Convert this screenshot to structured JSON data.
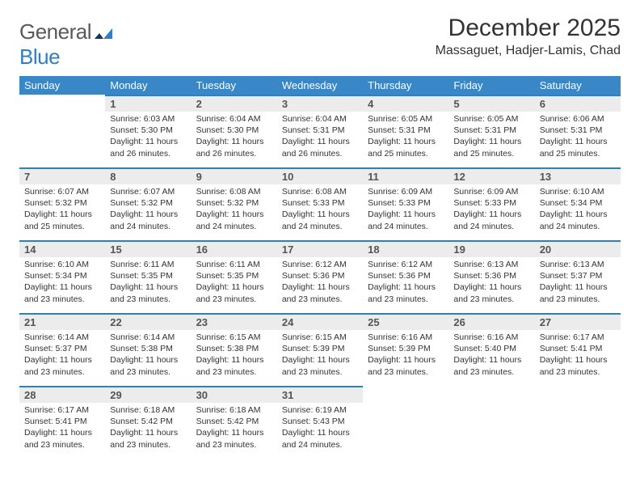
{
  "brand": {
    "part1": "General",
    "part2": "Blue"
  },
  "title": "December 2025",
  "location": "Massaguet, Hadjer-Lamis, Chad",
  "colors": {
    "header_bg": "#3a87c8",
    "header_text": "#ffffff",
    "daynum_bg": "#ececec",
    "daynum_border": "#2f7fc2",
    "brand_gray": "#5a5a5a",
    "brand_blue": "#2f7fc2",
    "body_text": "#333333",
    "page_bg": "#ffffff"
  },
  "weekdays": [
    "Sunday",
    "Monday",
    "Tuesday",
    "Wednesday",
    "Thursday",
    "Friday",
    "Saturday"
  ],
  "weeks": [
    [
      null,
      {
        "n": "1",
        "sr": "Sunrise: 6:03 AM",
        "ss": "Sunset: 5:30 PM",
        "d1": "Daylight: 11 hours",
        "d2": "and 26 minutes."
      },
      {
        "n": "2",
        "sr": "Sunrise: 6:04 AM",
        "ss": "Sunset: 5:30 PM",
        "d1": "Daylight: 11 hours",
        "d2": "and 26 minutes."
      },
      {
        "n": "3",
        "sr": "Sunrise: 6:04 AM",
        "ss": "Sunset: 5:31 PM",
        "d1": "Daylight: 11 hours",
        "d2": "and 26 minutes."
      },
      {
        "n": "4",
        "sr": "Sunrise: 6:05 AM",
        "ss": "Sunset: 5:31 PM",
        "d1": "Daylight: 11 hours",
        "d2": "and 25 minutes."
      },
      {
        "n": "5",
        "sr": "Sunrise: 6:05 AM",
        "ss": "Sunset: 5:31 PM",
        "d1": "Daylight: 11 hours",
        "d2": "and 25 minutes."
      },
      {
        "n": "6",
        "sr": "Sunrise: 6:06 AM",
        "ss": "Sunset: 5:31 PM",
        "d1": "Daylight: 11 hours",
        "d2": "and 25 minutes."
      }
    ],
    [
      {
        "n": "7",
        "sr": "Sunrise: 6:07 AM",
        "ss": "Sunset: 5:32 PM",
        "d1": "Daylight: 11 hours",
        "d2": "and 25 minutes."
      },
      {
        "n": "8",
        "sr": "Sunrise: 6:07 AM",
        "ss": "Sunset: 5:32 PM",
        "d1": "Daylight: 11 hours",
        "d2": "and 24 minutes."
      },
      {
        "n": "9",
        "sr": "Sunrise: 6:08 AM",
        "ss": "Sunset: 5:32 PM",
        "d1": "Daylight: 11 hours",
        "d2": "and 24 minutes."
      },
      {
        "n": "10",
        "sr": "Sunrise: 6:08 AM",
        "ss": "Sunset: 5:33 PM",
        "d1": "Daylight: 11 hours",
        "d2": "and 24 minutes."
      },
      {
        "n": "11",
        "sr": "Sunrise: 6:09 AM",
        "ss": "Sunset: 5:33 PM",
        "d1": "Daylight: 11 hours",
        "d2": "and 24 minutes."
      },
      {
        "n": "12",
        "sr": "Sunrise: 6:09 AM",
        "ss": "Sunset: 5:33 PM",
        "d1": "Daylight: 11 hours",
        "d2": "and 24 minutes."
      },
      {
        "n": "13",
        "sr": "Sunrise: 6:10 AM",
        "ss": "Sunset: 5:34 PM",
        "d1": "Daylight: 11 hours",
        "d2": "and 24 minutes."
      }
    ],
    [
      {
        "n": "14",
        "sr": "Sunrise: 6:10 AM",
        "ss": "Sunset: 5:34 PM",
        "d1": "Daylight: 11 hours",
        "d2": "and 23 minutes."
      },
      {
        "n": "15",
        "sr": "Sunrise: 6:11 AM",
        "ss": "Sunset: 5:35 PM",
        "d1": "Daylight: 11 hours",
        "d2": "and 23 minutes."
      },
      {
        "n": "16",
        "sr": "Sunrise: 6:11 AM",
        "ss": "Sunset: 5:35 PM",
        "d1": "Daylight: 11 hours",
        "d2": "and 23 minutes."
      },
      {
        "n": "17",
        "sr": "Sunrise: 6:12 AM",
        "ss": "Sunset: 5:36 PM",
        "d1": "Daylight: 11 hours",
        "d2": "and 23 minutes."
      },
      {
        "n": "18",
        "sr": "Sunrise: 6:12 AM",
        "ss": "Sunset: 5:36 PM",
        "d1": "Daylight: 11 hours",
        "d2": "and 23 minutes."
      },
      {
        "n": "19",
        "sr": "Sunrise: 6:13 AM",
        "ss": "Sunset: 5:36 PM",
        "d1": "Daylight: 11 hours",
        "d2": "and 23 minutes."
      },
      {
        "n": "20",
        "sr": "Sunrise: 6:13 AM",
        "ss": "Sunset: 5:37 PM",
        "d1": "Daylight: 11 hours",
        "d2": "and 23 minutes."
      }
    ],
    [
      {
        "n": "21",
        "sr": "Sunrise: 6:14 AM",
        "ss": "Sunset: 5:37 PM",
        "d1": "Daylight: 11 hours",
        "d2": "and 23 minutes."
      },
      {
        "n": "22",
        "sr": "Sunrise: 6:14 AM",
        "ss": "Sunset: 5:38 PM",
        "d1": "Daylight: 11 hours",
        "d2": "and 23 minutes."
      },
      {
        "n": "23",
        "sr": "Sunrise: 6:15 AM",
        "ss": "Sunset: 5:38 PM",
        "d1": "Daylight: 11 hours",
        "d2": "and 23 minutes."
      },
      {
        "n": "24",
        "sr": "Sunrise: 6:15 AM",
        "ss": "Sunset: 5:39 PM",
        "d1": "Daylight: 11 hours",
        "d2": "and 23 minutes."
      },
      {
        "n": "25",
        "sr": "Sunrise: 6:16 AM",
        "ss": "Sunset: 5:39 PM",
        "d1": "Daylight: 11 hours",
        "d2": "and 23 minutes."
      },
      {
        "n": "26",
        "sr": "Sunrise: 6:16 AM",
        "ss": "Sunset: 5:40 PM",
        "d1": "Daylight: 11 hours",
        "d2": "and 23 minutes."
      },
      {
        "n": "27",
        "sr": "Sunrise: 6:17 AM",
        "ss": "Sunset: 5:41 PM",
        "d1": "Daylight: 11 hours",
        "d2": "and 23 minutes."
      }
    ],
    [
      {
        "n": "28",
        "sr": "Sunrise: 6:17 AM",
        "ss": "Sunset: 5:41 PM",
        "d1": "Daylight: 11 hours",
        "d2": "and 23 minutes."
      },
      {
        "n": "29",
        "sr": "Sunrise: 6:18 AM",
        "ss": "Sunset: 5:42 PM",
        "d1": "Daylight: 11 hours",
        "d2": "and 23 minutes."
      },
      {
        "n": "30",
        "sr": "Sunrise: 6:18 AM",
        "ss": "Sunset: 5:42 PM",
        "d1": "Daylight: 11 hours",
        "d2": "and 23 minutes."
      },
      {
        "n": "31",
        "sr": "Sunrise: 6:19 AM",
        "ss": "Sunset: 5:43 PM",
        "d1": "Daylight: 11 hours",
        "d2": "and 24 minutes."
      },
      null,
      null,
      null
    ]
  ]
}
